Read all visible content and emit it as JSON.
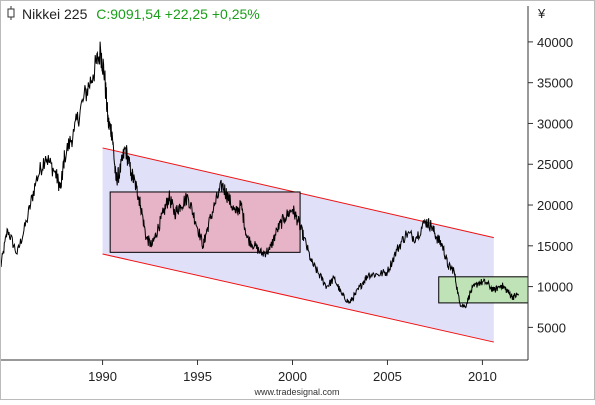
{
  "header": {
    "symbol": "Nikkei 225",
    "quote": "C:9091,54 +22,25 +0,25%",
    "symbol_color": "#222222",
    "quote_color": "#1a9e1a"
  },
  "footer": {
    "watermark": "www.tradesignal.com"
  },
  "chart_data": {
    "type": "line",
    "title": "",
    "xlabel": "",
    "ylabel": "¥",
    "x_ticks": [
      1990,
      1995,
      2000,
      2005,
      2010
    ],
    "x_tick_labels": [
      "1990",
      "1995",
      "2000",
      "2005",
      "2010"
    ],
    "y_ticks": [
      5000,
      10000,
      15000,
      20000,
      25000,
      30000,
      35000,
      40000
    ],
    "y_tick_labels": [
      "5000",
      "10000",
      "15000",
      "20000",
      "25000",
      "30000",
      "35000",
      "40000"
    ],
    "xlim": [
      1984.6,
      2012.4
    ],
    "ylim": [
      1000,
      44400
    ],
    "grid": false,
    "legend": "none",
    "series": [
      {
        "color": "#000000",
        "x": [
          1984.6,
          1985.0,
          1985.5,
          1986.0,
          1986.5,
          1987.0,
          1987.5,
          1987.8,
          1988.0,
          1988.5,
          1989.0,
          1989.5,
          1989.9,
          1990.1,
          1990.3,
          1990.5,
          1990.7,
          1990.9,
          1991.2,
          1991.5,
          1991.8,
          1992.0,
          1992.3,
          1992.6,
          1992.9,
          1993.2,
          1993.5,
          1993.8,
          1994.1,
          1994.5,
          1994.9,
          1995.3,
          1995.5,
          1995.9,
          1996.3,
          1996.6,
          1997.0,
          1997.3,
          1997.6,
          1998.0,
          1998.4,
          1998.8,
          1999.2,
          1999.6,
          2000.0,
          2000.3,
          2000.6,
          2001.0,
          2001.4,
          2001.8,
          2002.2,
          2002.6,
          2003.0,
          2003.3,
          2003.7,
          2004.0,
          2004.5,
          2005.0,
          2005.5,
          2006.0,
          2006.5,
          2007.0,
          2007.3,
          2007.6,
          2007.9,
          2008.2,
          2008.5,
          2008.8,
          2009.1,
          2009.4,
          2009.8,
          2010.2,
          2010.6,
          2011.0,
          2011.3,
          2011.6,
          2011.9
        ],
        "values": [
          12000,
          17000,
          14000,
          18000,
          23000,
          26000,
          24000,
          22000,
          26000,
          29000,
          33000,
          36000,
          38900,
          36000,
          30000,
          29000,
          23000,
          24000,
          27000,
          24000,
          22000,
          20000,
          16000,
          15000,
          17000,
          19000,
          21000,
          19000,
          20000,
          21000,
          18000,
          15000,
          17000,
          20000,
          22500,
          21000,
          19000,
          20000,
          16000,
          15000,
          14000,
          14500,
          17000,
          18500,
          19500,
          18000,
          16000,
          13000,
          11500,
          10000,
          11000,
          9000,
          8000,
          9000,
          10500,
          11500,
          11500,
          11800,
          14500,
          16500,
          16000,
          18000,
          17500,
          16000,
          15000,
          12500,
          12000,
          8000,
          7500,
          9500,
          10500,
          10500,
          9500,
          10200,
          9500,
          8700,
          9090
        ]
      }
    ],
    "regions": [
      {
        "kind": "channel",
        "fill": "#e0e0f8",
        "line_color": "#ee1111",
        "upper": [
          [
            1990.0,
            27000
          ],
          [
            2010.6,
            16000
          ]
        ],
        "lower": [
          [
            1990.0,
            14000
          ],
          [
            2010.6,
            3200
          ]
        ]
      },
      {
        "kind": "range-box",
        "fill": "#e7b3c6",
        "border": "#000000",
        "x": [
          1990.4,
          2000.4
        ],
        "y": [
          14200,
          21600
        ]
      },
      {
        "kind": "range-box",
        "fill": "#bfe3b6",
        "border": "#000000",
        "x": [
          2007.7,
          2012.4
        ],
        "y": [
          8000,
          11200
        ]
      }
    ]
  }
}
